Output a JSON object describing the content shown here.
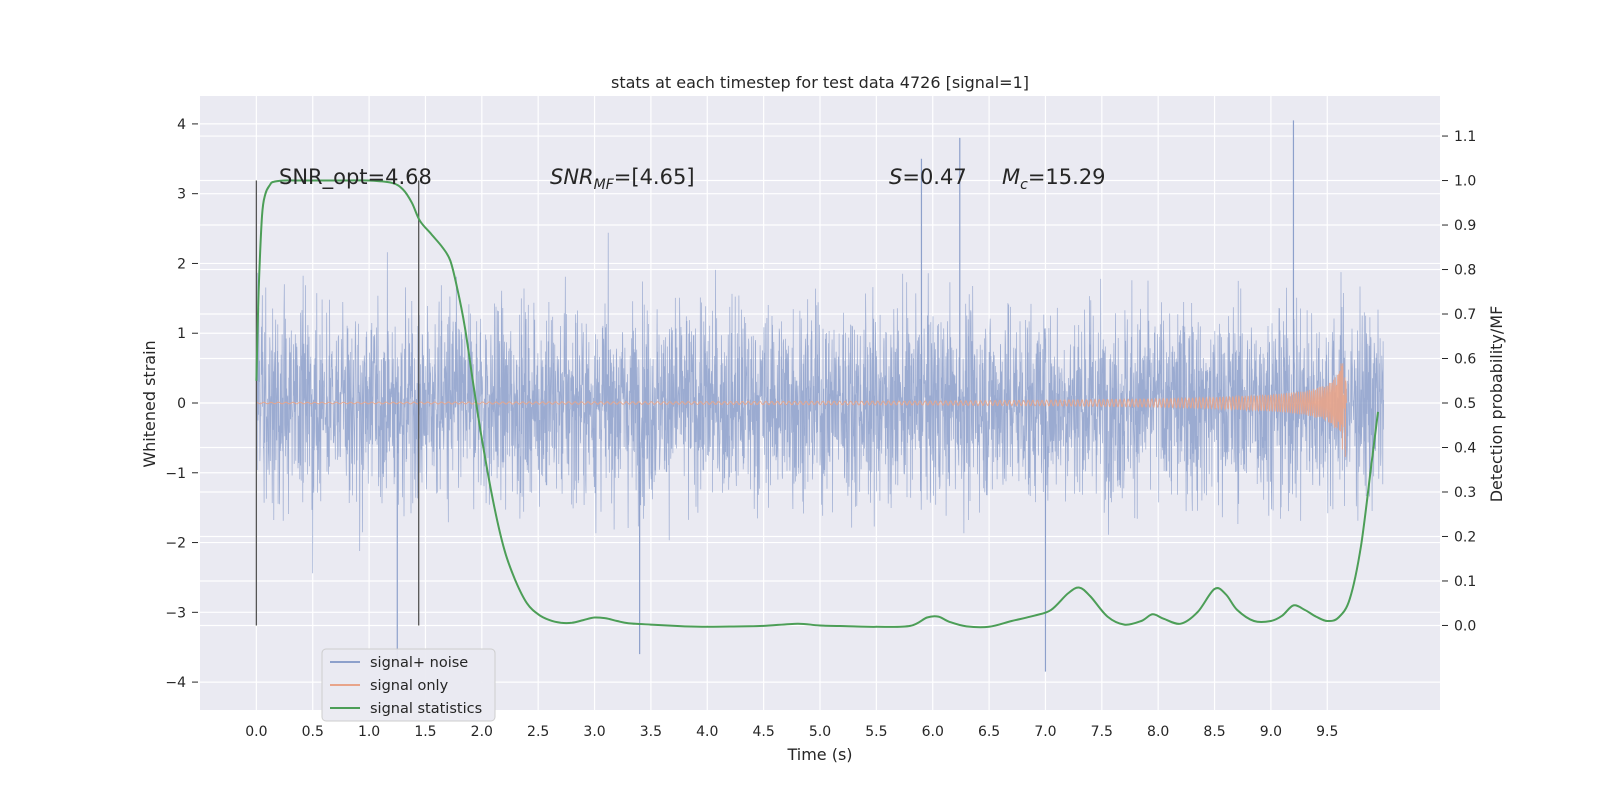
{
  "chart_data": {
    "type": "line",
    "title": "stats at each timestep for test data 4726 [signal=1]",
    "xlabel": "Time (s)",
    "ylabel": "Whitened strain",
    "y2label": "Detection probability/MF",
    "xlim": [
      -0.5,
      10.5
    ],
    "ylim": [
      -4.4,
      4.4
    ],
    "y2lim": [
      -0.19,
      1.19
    ],
    "x_ticks": [
      "0.0",
      "0.5",
      "1.0",
      "1.5",
      "2.0",
      "2.5",
      "3.0",
      "3.5",
      "4.0",
      "4.5",
      "5.0",
      "5.5",
      "6.0",
      "6.5",
      "7.0",
      "7.5",
      "8.0",
      "8.5",
      "9.0",
      "9.5"
    ],
    "y_ticks": [
      "−4",
      "−3",
      "−2",
      "−1",
      "0",
      "1",
      "2",
      "3",
      "4"
    ],
    "y2_ticks": [
      "0.0",
      "0.1",
      "0.2",
      "0.3",
      "0.4",
      "0.5",
      "0.6",
      "0.7",
      "0.8",
      "0.9",
      "1.0",
      "1.1"
    ],
    "grid": true,
    "legend_position": "lower-left",
    "annotations": {
      "snr_opt": "SNR_opt=4.68",
      "snr_mf_base": "SNR",
      "snr_mf_sub": "MF",
      "snr_mf_rest": "=[4.65]",
      "s_base": "S",
      "s_rest": "=0.47",
      "mc_base": "M",
      "mc_sub": "c",
      "mc_rest": "=15.29"
    },
    "vertical_markers": [
      0.0,
      1.44
    ],
    "series": [
      {
        "name": "signal+ noise",
        "color": "#8da0cb",
        "x_range": [
          0.0,
          10.0
        ],
        "amplitude_envelope": {
          "dense_band": [
            -1.9,
            1.9
          ],
          "peak_max": 4.05,
          "peak_min": -3.85
        }
      },
      {
        "name": "signal only",
        "color": "#e8a48a",
        "description_shape": "chirp",
        "x": [
          0.0,
          2.0,
          4.0,
          6.0,
          7.0,
          8.0,
          8.5,
          9.0,
          9.3,
          9.5,
          9.6,
          9.66,
          9.67
        ],
        "envelope": [
          0.01,
          0.015,
          0.02,
          0.03,
          0.04,
          0.06,
          0.08,
          0.12,
          0.17,
          0.26,
          0.42,
          0.85,
          0.0
        ]
      },
      {
        "name": "signal statistics",
        "color": "#4c9e57",
        "axis": "right",
        "x": [
          0.0,
          0.02,
          0.05,
          0.08,
          0.12,
          0.15,
          0.25,
          0.4,
          0.6,
          0.8,
          1.0,
          1.2,
          1.3,
          1.38,
          1.45,
          1.55,
          1.65,
          1.72,
          1.78,
          1.85,
          1.92,
          2.0,
          2.1,
          2.2,
          2.3,
          2.4,
          2.5,
          2.6,
          2.7,
          2.8,
          2.9,
          3.0,
          3.1,
          3.2,
          3.3,
          3.5,
          3.8,
          4.0,
          4.3,
          4.5,
          4.8,
          5.0,
          5.3,
          5.5,
          5.8,
          5.95,
          6.05,
          6.15,
          6.3,
          6.5,
          6.7,
          6.9,
          7.05,
          7.2,
          7.3,
          7.4,
          7.55,
          7.7,
          7.85,
          7.95,
          8.05,
          8.2,
          8.35,
          8.5,
          8.6,
          8.7,
          8.85,
          9.0,
          9.1,
          9.2,
          9.3,
          9.4,
          9.5,
          9.6,
          9.7,
          9.8,
          9.9,
          9.95
        ],
        "values": [
          0.55,
          0.75,
          0.92,
          0.97,
          0.99,
          0.997,
          1.0,
          1.0,
          1.0,
          1.0,
          1.0,
          0.995,
          0.98,
          0.95,
          0.91,
          0.88,
          0.85,
          0.82,
          0.76,
          0.67,
          0.55,
          0.42,
          0.28,
          0.17,
          0.1,
          0.05,
          0.025,
          0.012,
          0.006,
          0.006,
          0.012,
          0.018,
          0.016,
          0.01,
          0.005,
          0.002,
          -0.002,
          -0.003,
          -0.002,
          -0.001,
          0.004,
          0.0,
          -0.002,
          -0.003,
          -0.001,
          0.018,
          0.02,
          0.008,
          -0.002,
          -0.003,
          0.01,
          0.022,
          0.035,
          0.072,
          0.085,
          0.065,
          0.02,
          0.002,
          0.01,
          0.025,
          0.015,
          0.004,
          0.03,
          0.082,
          0.07,
          0.035,
          0.01,
          0.01,
          0.022,
          0.045,
          0.035,
          0.02,
          0.01,
          0.018,
          0.06,
          0.18,
          0.38,
          0.48
        ]
      }
    ]
  }
}
